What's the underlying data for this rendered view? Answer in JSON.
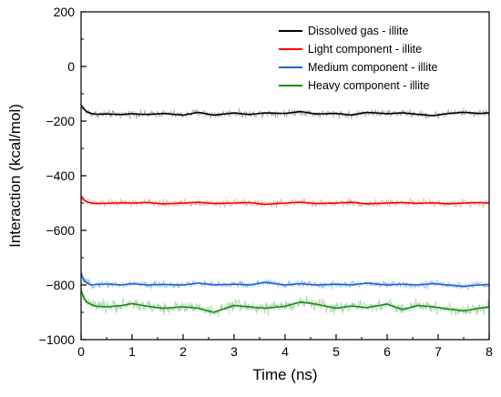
{
  "chart_data": {
    "type": "line",
    "title": "",
    "xlabel": "Time (ns)",
    "ylabel": "Interaction (kcal/mol)",
    "xlim": [
      0,
      8
    ],
    "ylim": [
      -1000,
      200
    ],
    "xticks": [
      0,
      1,
      2,
      3,
      4,
      5,
      6,
      7,
      8
    ],
    "yticks": [
      -1000,
      -800,
      -600,
      -400,
      -200,
      0,
      200
    ],
    "grid": false,
    "legend_position": "top-right",
    "series": [
      {
        "name": "Dissolved gas - illite",
        "color": "#000000",
        "raw_color": "#9a9a9a",
        "x": [
          0,
          0.05,
          0.1,
          0.2,
          0.3,
          0.5,
          0.8,
          1.0,
          1.3,
          1.6,
          2.0,
          2.3,
          2.6,
          3.0,
          3.3,
          3.6,
          4.0,
          4.3,
          4.6,
          5.0,
          5.3,
          5.6,
          6.0,
          6.3,
          6.6,
          6.9,
          7.2,
          7.5,
          7.8,
          8.0
        ],
        "values": [
          -140,
          -155,
          -165,
          -172,
          -175,
          -174,
          -176,
          -173,
          -176,
          -172,
          -178,
          -168,
          -178,
          -170,
          -176,
          -170,
          -172,
          -165,
          -174,
          -172,
          -178,
          -168,
          -173,
          -170,
          -175,
          -180,
          -172,
          -168,
          -172,
          -170
        ]
      },
      {
        "name": "Light component - illite",
        "color": "#ff0000",
        "raw_color": "#f6a0a0",
        "x": [
          0,
          0.05,
          0.1,
          0.2,
          0.3,
          0.5,
          0.8,
          1.0,
          1.3,
          1.6,
          2.0,
          2.3,
          2.6,
          3.0,
          3.3,
          3.6,
          4.0,
          4.3,
          4.6,
          5.0,
          5.3,
          5.6,
          6.0,
          6.3,
          6.6,
          6.9,
          7.2,
          7.5,
          7.8,
          8.0
        ],
        "values": [
          -475,
          -488,
          -495,
          -500,
          -502,
          -501,
          -499,
          -500,
          -498,
          -503,
          -500,
          -497,
          -502,
          -500,
          -498,
          -505,
          -500,
          -497,
          -502,
          -500,
          -497,
          -503,
          -500,
          -498,
          -501,
          -499,
          -503,
          -500,
          -498,
          -500
        ]
      },
      {
        "name": "Medium component - illite",
        "color": "#1a66d9",
        "raw_color": "#8fb6ef",
        "x": [
          0,
          0.05,
          0.1,
          0.2,
          0.3,
          0.5,
          0.8,
          1.0,
          1.3,
          1.6,
          2.0,
          2.3,
          2.6,
          3.0,
          3.3,
          3.6,
          4.0,
          4.3,
          4.6,
          5.0,
          5.3,
          5.6,
          6.0,
          6.3,
          6.6,
          6.9,
          7.2,
          7.5,
          7.8,
          8.0
        ],
        "values": [
          -760,
          -780,
          -792,
          -800,
          -798,
          -796,
          -800,
          -795,
          -800,
          -798,
          -800,
          -793,
          -800,
          -797,
          -800,
          -790,
          -800,
          -795,
          -800,
          -797,
          -800,
          -793,
          -800,
          -797,
          -800,
          -795,
          -800,
          -805,
          -800,
          -798
        ]
      },
      {
        "name": "Heavy component - illite",
        "color": "#1a8c1a",
        "raw_color": "#95d095",
        "x": [
          0,
          0.05,
          0.1,
          0.2,
          0.3,
          0.5,
          0.8,
          1.0,
          1.3,
          1.6,
          2.0,
          2.3,
          2.6,
          3.0,
          3.3,
          3.6,
          4.0,
          4.3,
          4.6,
          5.0,
          5.3,
          5.6,
          6.0,
          6.3,
          6.6,
          6.9,
          7.2,
          7.5,
          7.8,
          8.0
        ],
        "values": [
          -820,
          -845,
          -862,
          -872,
          -878,
          -880,
          -875,
          -868,
          -878,
          -885,
          -880,
          -885,
          -900,
          -875,
          -880,
          -885,
          -878,
          -862,
          -870,
          -885,
          -877,
          -883,
          -870,
          -890,
          -875,
          -880,
          -888,
          -895,
          -885,
          -880
        ]
      }
    ]
  }
}
